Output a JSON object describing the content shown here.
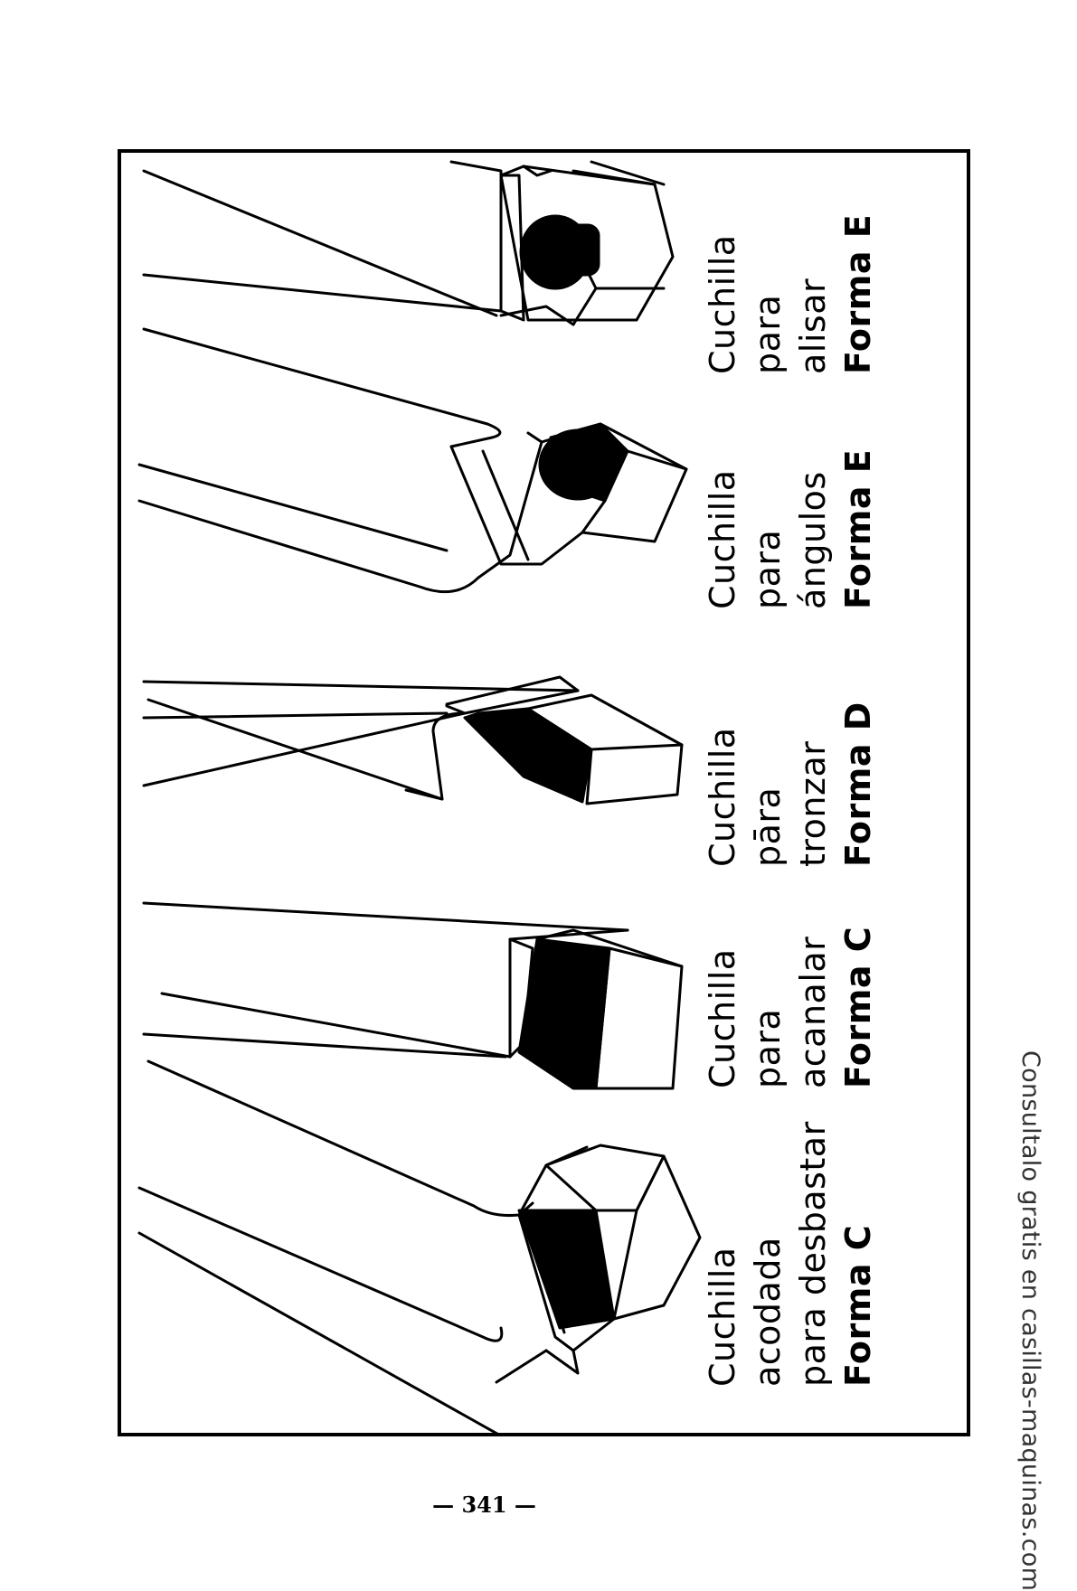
{
  "tools": [
    {
      "lines": [
        "Cuchilla",
        "acodada",
        "para desbastar"
      ],
      "form_prefix": "Forma ",
      "form_letter": "C"
    },
    {
      "lines": [
        "Cuchilla",
        "para",
        "acanalar"
      ],
      "form_prefix": "Forma ",
      "form_letter": "C"
    },
    {
      "lines": [
        "Cuchilla",
        "pāra",
        "tronzar"
      ],
      "form_prefix": "Forma ",
      "form_letter": "D"
    },
    {
      "lines": [
        "Cuchilla",
        "para",
        "ángulos"
      ],
      "form_prefix": "Forma ",
      "form_letter": "E"
    },
    {
      "lines": [
        "Cuchilla",
        "para",
        "alisar"
      ],
      "form_prefix": "Forma ",
      "form_letter": "E"
    }
  ],
  "watermark": "Consultalo gratis en casillas-maquinas.com",
  "page_number": "— 341 —",
  "colors": {
    "ink": "#000000",
    "paper": "#ffffff"
  }
}
